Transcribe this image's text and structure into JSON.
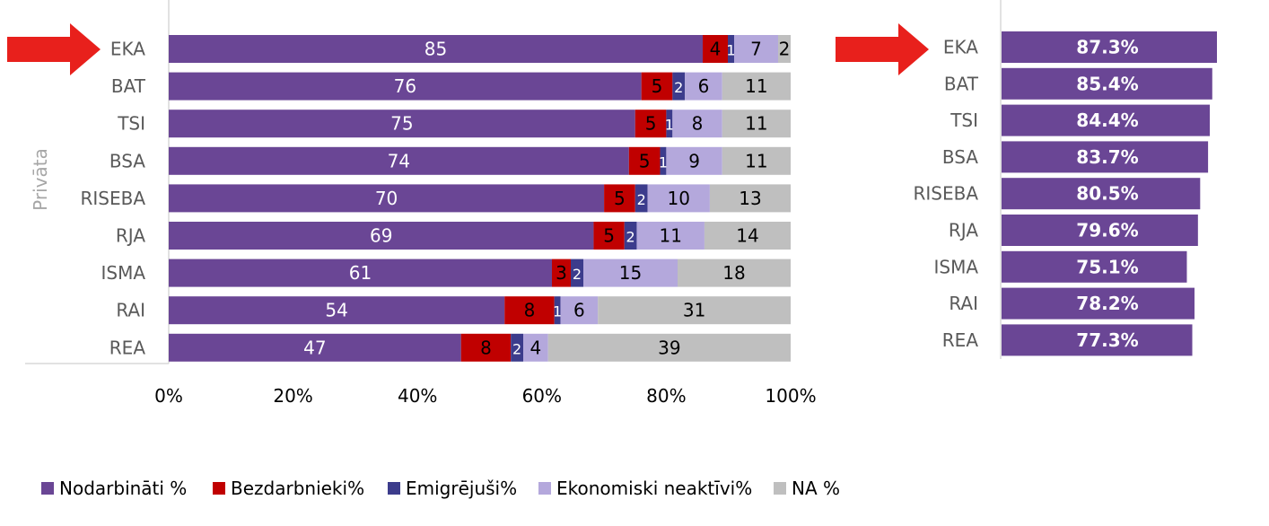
{
  "chart_data": [
    {
      "type": "bar",
      "orientation": "horizontal",
      "stacked": "percent",
      "group_label": "Privāta",
      "categories": [
        "EKA",
        "BAT",
        "TSI",
        "BSA",
        "RISEBA",
        "RJA",
        "ISMA",
        "RAI",
        "REA"
      ],
      "highlighted_category": "EKA",
      "series": [
        {
          "name": "Nodarbināti %",
          "color": "#6a4695",
          "values": [
            85,
            76,
            75,
            74,
            70,
            69,
            61,
            54,
            47
          ]
        },
        {
          "name": "Bezdarbnieki%",
          "color": "#c00000",
          "values": [
            4,
            5,
            5,
            5,
            5,
            5,
            3,
            8,
            8
          ]
        },
        {
          "name": "Emigrējuši%",
          "color": "#3c3c8c",
          "values": [
            1,
            2,
            1,
            1,
            2,
            2,
            2,
            1,
            2
          ]
        },
        {
          "name": "Ekonomiski neaktīvi%",
          "color": "#b4a8dc",
          "values": [
            7,
            6,
            8,
            9,
            10,
            11,
            15,
            6,
            4
          ]
        },
        {
          "name": "NA %",
          "color": "#bfbfbf",
          "values": [
            2,
            11,
            11,
            11,
            13,
            14,
            18,
            31,
            39
          ]
        }
      ],
      "x_ticks": [
        "0%",
        "20%",
        "40%",
        "60%",
        "80%",
        "100%"
      ],
      "xlim": [
        0,
        100
      ]
    },
    {
      "type": "bar",
      "orientation": "horizontal",
      "categories": [
        "EKA",
        "BAT",
        "TSI",
        "BSA",
        "RISEBA",
        "RJA",
        "ISMA",
        "RAI",
        "REA"
      ],
      "highlighted_category": "EKA",
      "color": "#6a4695",
      "values": [
        87.3,
        85.4,
        84.4,
        83.7,
        80.5,
        79.6,
        75.1,
        78.2,
        77.3
      ],
      "value_labels": [
        "87.3%",
        "85.4%",
        "84.4%",
        "83.7%",
        "80.5%",
        "79.6%",
        "75.1%",
        "78.2%",
        "77.3%"
      ]
    }
  ],
  "legend": {
    "position": "bottom",
    "items": [
      {
        "label": "Nodarbināti %",
        "color": "#6a4695"
      },
      {
        "label": "Bezdarbnieki%",
        "color": "#c00000"
      },
      {
        "label": "Emigrējuši%",
        "color": "#3c3c8c"
      },
      {
        "label": "Ekonomiski neaktīvi%",
        "color": "#b4a8dc"
      },
      {
        "label": "NA %",
        "color": "#bfbfbf"
      }
    ]
  },
  "colors": {
    "arrow": "#e8201c",
    "axis_text": "#595959",
    "value_text_dark": "#000000",
    "value_text_light": "#ffffff"
  }
}
